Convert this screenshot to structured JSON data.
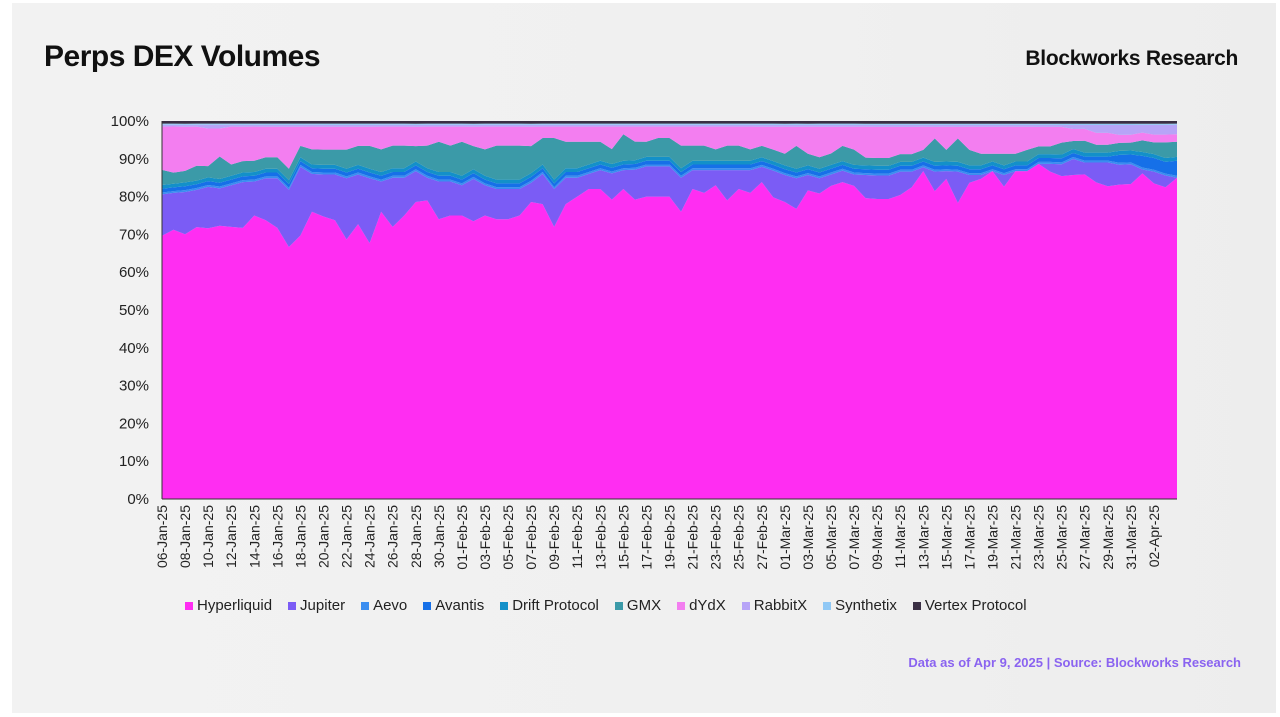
{
  "title": "Perps DEX Volumes",
  "brand": "Blockworks Research",
  "source": "Data as of Apr 9, 2025 | Source: Blockworks Research",
  "colors": {
    "source_text": "#8a63f0"
  },
  "chart_data": {
    "type": "area",
    "stacked": "percent",
    "ylim": [
      0,
      100
    ],
    "yticks": [
      "0%",
      "10%",
      "20%",
      "30%",
      "40%",
      "50%",
      "60%",
      "70%",
      "80%",
      "90%",
      "100%"
    ],
    "x_tick_labels": [
      "06-Jan-25",
      "08-Jan-25",
      "10-Jan-25",
      "12-Jan-25",
      "14-Jan-25",
      "16-Jan-25",
      "18-Jan-25",
      "20-Jan-25",
      "22-Jan-25",
      "24-Jan-25",
      "26-Jan-25",
      "28-Jan-25",
      "30-Jan-25",
      "01-Feb-25",
      "03-Feb-25",
      "05-Feb-25",
      "07-Feb-25",
      "09-Feb-25",
      "11-Feb-25",
      "13-Feb-25",
      "15-Feb-25",
      "17-Feb-25",
      "19-Feb-25",
      "21-Feb-25",
      "23-Feb-25",
      "25-Feb-25",
      "27-Feb-25",
      "01-Mar-25",
      "03-Mar-25",
      "05-Mar-25",
      "07-Mar-25",
      "09-Mar-25",
      "11-Mar-25",
      "13-Mar-25",
      "15-Mar-25",
      "17-Mar-25",
      "19-Mar-25",
      "21-Mar-25",
      "23-Mar-25",
      "25-Mar-25",
      "27-Mar-25",
      "29-Mar-25",
      "31-Mar-25",
      "02-Apr-25"
    ],
    "x_start": "06-Jan-25",
    "x_end": "03-Apr-25",
    "legend": [
      "Hyperliquid",
      "Jupiter",
      "Aevo",
      "Avantis",
      "Drift Protocol",
      "GMX",
      "dYdX",
      "RabbitX",
      "Synthetix",
      "Vertex Protocol"
    ],
    "series": [
      {
        "name": "Hyperliquid",
        "color": "#ff2df2",
        "values": [
          70,
          73,
          69,
          73,
          72,
          73,
          72,
          71,
          75,
          73,
          71,
          66,
          69,
          76,
          74,
          73,
          68,
          72,
          67,
          76,
          72,
          75,
          77,
          79,
          74,
          75,
          75,
          72,
          75,
          74,
          74,
          75,
          77,
          78,
          72,
          78,
          80,
          82,
          82,
          80,
          82,
          80,
          80,
          80,
          80,
          76,
          82,
          81,
          83,
          79,
          82,
          81,
          83,
          79,
          77,
          76,
          80,
          80,
          82,
          83,
          82,
          78,
          77,
          77,
          78,
          80,
          85,
          79,
          83,
          76,
          82,
          83,
          85,
          81,
          85,
          85,
          86,
          84,
          82,
          81,
          82,
          80,
          79,
          79,
          80,
          84,
          81,
          80,
          85
        ]
      },
      {
        "name": "Jupiter",
        "color": "#7b5cf5",
        "values": [
          11,
          10,
          11,
          10,
          11,
          10,
          11,
          12,
          9,
          11,
          13,
          15,
          18,
          10,
          11,
          12,
          16,
          13,
          17,
          8,
          13,
          10,
          8,
          6,
          10,
          9,
          8,
          11,
          8,
          8,
          8,
          7,
          5,
          8,
          10,
          7,
          5,
          4,
          5,
          7,
          5,
          8,
          8,
          8,
          8,
          9,
          5,
          6,
          4,
          8,
          5,
          6,
          4,
          7,
          7,
          8,
          4,
          4,
          3,
          3,
          3,
          6,
          6,
          6,
          6,
          4,
          1,
          5,
          2,
          8,
          2,
          1,
          0,
          3,
          0,
          0,
          0,
          2,
          3,
          4,
          3,
          5,
          6,
          5,
          5,
          1,
          3,
          3,
          0
        ]
      },
      {
        "name": "Aevo",
        "color": "#3a8df0",
        "values": [
          0.5,
          0.5,
          0.5,
          0.5,
          0.5,
          0.5,
          0.5,
          0.5,
          0.5,
          0.5,
          0.5,
          0.5,
          0.5,
          0.5,
          0.5,
          0.5,
          0.5,
          0.5,
          0.5,
          0.5,
          0.5,
          0.5,
          0.5,
          0.5,
          0.5,
          0.5,
          0.5,
          0.5,
          0.5,
          0.5,
          0.5,
          0.5,
          0.5,
          0.5,
          0.5,
          0.5,
          0.5,
          0.5,
          0.5,
          0.5,
          0.5,
          0.5,
          0.5,
          0.5,
          0.5,
          0.5,
          0.5,
          0.5,
          0.5,
          0.5,
          0.5,
          0.5,
          0.5,
          0.5,
          0.5,
          0.5,
          0.5,
          0.5,
          0.5,
          0.5,
          0.5,
          0.5,
          0.5,
          0.5,
          0.5,
          0.5,
          0.5,
          0.5,
          0.5,
          0.5,
          0.5,
          0.5,
          0.5,
          0.5,
          0.5,
          0.5,
          0.5,
          0.5,
          0.5,
          0.5,
          0.5,
          0.5,
          0.5,
          0.5,
          0.5,
          0.5,
          0.5,
          0.5,
          0.5
        ]
      },
      {
        "name": "Avantis",
        "color": "#1670e8",
        "values": [
          1,
          1,
          1,
          1,
          1,
          1,
          1,
          1,
          1,
          1,
          1,
          1,
          1,
          1,
          1,
          1,
          1,
          1,
          1,
          1,
          1,
          1,
          1,
          1,
          1,
          1,
          1,
          1,
          1,
          1,
          1,
          1,
          1,
          1,
          1,
          1,
          1,
          1,
          1,
          1,
          1,
          1,
          1,
          1,
          1,
          1,
          1,
          1,
          1,
          1,
          1,
          1,
          1,
          1,
          1,
          1,
          1,
          1,
          1,
          1,
          1,
          1,
          1,
          1,
          1,
          1,
          1,
          1,
          1,
          1,
          1,
          1,
          1,
          1,
          1,
          1,
          1,
          1,
          1,
          1,
          1,
          1,
          1,
          2,
          2,
          3,
          3,
          3,
          4
        ]
      },
      {
        "name": "Drift Protocol",
        "color": "#1390c9",
        "values": [
          1,
          1,
          1,
          1,
          1,
          1,
          1,
          1,
          1,
          1,
          1,
          1,
          1,
          1,
          1,
          1,
          1,
          1,
          1,
          1,
          1,
          1,
          1,
          1,
          1,
          1,
          1,
          1,
          1,
          1,
          1,
          1,
          1,
          1,
          1,
          1,
          1,
          1,
          1,
          1,
          1,
          1,
          1,
          1,
          1,
          1,
          1,
          1,
          1,
          1,
          1,
          1,
          1,
          1,
          1,
          1,
          1,
          1,
          1,
          1,
          1,
          1,
          1,
          1,
          1,
          1,
          1,
          1,
          1,
          1,
          1,
          1,
          1,
          1,
          1,
          1,
          1,
          1,
          1,
          1,
          1,
          1,
          1,
          1,
          1,
          1,
          1,
          1,
          1
        ]
      },
      {
        "name": "GMX",
        "color": "#3b9aa8",
        "values": [
          4,
          3,
          3,
          4,
          3,
          6,
          3,
          3,
          3,
          3,
          3,
          3,
          3,
          4,
          4,
          4,
          5,
          5,
          6,
          6,
          6,
          6,
          4,
          6,
          8,
          7,
          9,
          6,
          7,
          9,
          9,
          9,
          7,
          7,
          11,
          7,
          7,
          6,
          5,
          4,
          7,
          5,
          4,
          5,
          5,
          6,
          4,
          4,
          3,
          4,
          4,
          3,
          3,
          3,
          3,
          6,
          3,
          3,
          3,
          4,
          4,
          2,
          2,
          2,
          2,
          2,
          2,
          6,
          3,
          6,
          4,
          3,
          2,
          3,
          2,
          3,
          2,
          2,
          3,
          2,
          3,
          2,
          2,
          2,
          2,
          3,
          3,
          4,
          4
        ]
      },
      {
        "name": "dYdX",
        "color": "#f37ef0",
        "values": [
          11.5,
          12.5,
          11.5,
          10.5,
          10,
          7.5,
          10,
          9,
          9,
          8,
          8,
          11,
          5,
          6,
          6,
          6,
          6,
          5,
          5,
          6,
          5,
          5,
          5,
          5,
          4,
          5,
          4,
          5,
          6,
          5,
          5,
          5,
          5,
          3,
          3,
          4,
          4,
          4,
          4,
          6,
          2,
          4,
          4,
          3,
          3,
          5,
          5,
          5,
          6,
          5,
          5,
          6,
          5,
          6,
          7,
          5,
          7,
          8,
          7,
          5,
          6,
          8,
          8,
          8,
          7,
          7,
          6,
          3,
          6,
          3,
          6,
          7,
          7,
          7,
          7,
          6,
          5,
          5,
          4,
          3,
          3,
          3,
          3,
          2,
          2,
          2,
          2,
          2,
          2
        ]
      },
      {
        "name": "RabbitX",
        "color": "#b7a4f7",
        "values": [
          0.5,
          0.5,
          0.5,
          0.5,
          1,
          1,
          0.5,
          0.5,
          0.5,
          0.5,
          0.5,
          0.5,
          0.5,
          0.5,
          0.5,
          0.5,
          0.5,
          0.5,
          0.5,
          0.5,
          0.5,
          0.5,
          0.5,
          0.5,
          0.5,
          0.5,
          0.5,
          0.5,
          0.5,
          0.5,
          0.5,
          0.5,
          0.5,
          0.5,
          0.5,
          0.5,
          0.5,
          0.5,
          0.5,
          0.5,
          0.5,
          0.5,
          0.5,
          0.5,
          0.5,
          0.5,
          0.5,
          0.5,
          0.5,
          0.5,
          0.5,
          0.5,
          0.5,
          0.5,
          0.5,
          0.5,
          0.5,
          0.5,
          0.5,
          0.5,
          0.5,
          0.5,
          0.5,
          0.5,
          0.5,
          0.5,
          0.5,
          0.5,
          0.5,
          0.5,
          0.5,
          0.5,
          0.5,
          0.5,
          0.5,
          0.5,
          0.5,
          0.5,
          0.5,
          1,
          1,
          2,
          2,
          2.5,
          2.5,
          2,
          2.5,
          2.5,
          2.5
        ]
      },
      {
        "name": "Synthetix",
        "color": "#90c8f5",
        "values": [
          0.3,
          0.3,
          0.3,
          0.3,
          0.3,
          0.3,
          0.3,
          0.3,
          0.3,
          0.3,
          0.3,
          0.3,
          0.3,
          0.3,
          0.3,
          0.3,
          0.3,
          0.3,
          0.3,
          0.3,
          0.3,
          0.3,
          0.3,
          0.3,
          0.3,
          0.3,
          0.3,
          0.3,
          0.3,
          0.3,
          0.3,
          0.3,
          0.3,
          0.3,
          0.3,
          0.3,
          0.3,
          0.3,
          0.3,
          0.3,
          0.3,
          0.3,
          0.3,
          0.3,
          0.3,
          0.3,
          0.3,
          0.3,
          0.3,
          0.3,
          0.3,
          0.3,
          0.3,
          0.3,
          0.3,
          0.3,
          0.3,
          0.3,
          0.3,
          0.3,
          0.3,
          0.3,
          0.3,
          0.3,
          0.3,
          0.3,
          0.3,
          0.3,
          0.3,
          0.3,
          0.3,
          0.3,
          0.3,
          0.3,
          0.3,
          0.3,
          0.3,
          0.3,
          0.3,
          0.3,
          0.3,
          0.3,
          0.3,
          0.3,
          0.3,
          0.3,
          0.3,
          0.3,
          0.3
        ]
      },
      {
        "name": "Vertex Protocol",
        "color": "#3a2f44",
        "values": [
          0.7,
          0.7,
          0.7,
          0.7,
          0.7,
          0.7,
          0.7,
          0.7,
          0.7,
          0.7,
          0.7,
          0.7,
          0.7,
          0.7,
          0.7,
          0.7,
          0.7,
          0.7,
          0.7,
          0.7,
          0.7,
          0.7,
          0.7,
          0.7,
          0.7,
          0.7,
          0.7,
          0.7,
          0.7,
          0.7,
          0.7,
          0.7,
          0.7,
          0.7,
          0.7,
          0.7,
          0.7,
          0.7,
          0.7,
          0.7,
          0.7,
          0.7,
          0.7,
          0.7,
          0.7,
          0.7,
          0.7,
          0.7,
          0.7,
          0.7,
          0.7,
          0.7,
          0.7,
          0.7,
          0.7,
          0.7,
          0.7,
          0.7,
          0.7,
          0.7,
          0.7,
          0.7,
          0.7,
          0.7,
          0.7,
          0.7,
          0.7,
          0.7,
          0.7,
          0.7,
          0.7,
          0.7,
          0.7,
          0.7,
          0.7,
          0.7,
          0.7,
          0.7,
          0.7,
          0.7,
          0.7,
          0.7,
          0.7,
          0.7,
          0.7,
          0.7,
          0.7,
          0.7,
          0.7
        ]
      }
    ],
    "grid": false,
    "legend_position": "bottom"
  }
}
